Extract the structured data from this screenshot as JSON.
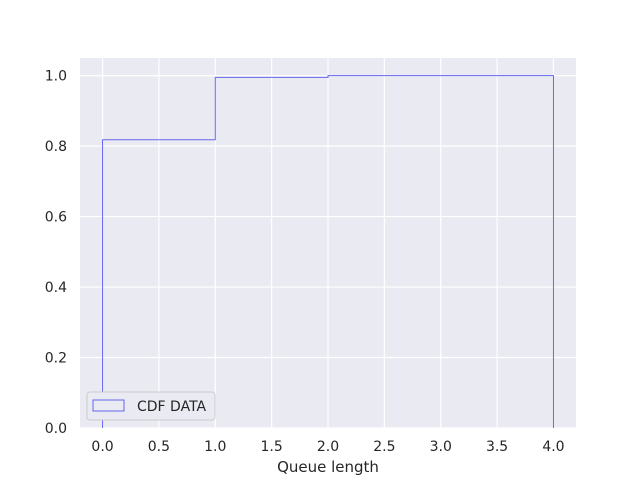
{
  "chart_data": {
    "type": "line",
    "title": "",
    "xlabel": "Queue length",
    "ylabel": "",
    "xlim": [
      -0.2,
      4.2
    ],
    "ylim": [
      0,
      1.05
    ],
    "x_ticks": [
      0.0,
      0.5,
      1.0,
      1.5,
      2.0,
      2.5,
      3.0,
      3.5,
      4.0
    ],
    "x_tick_labels": [
      "0.0",
      "0.5",
      "1.0",
      "1.5",
      "2.0",
      "2.5",
      "3.0",
      "3.5",
      "4.0"
    ],
    "y_ticks": [
      0.0,
      0.2,
      0.4,
      0.6,
      0.8,
      1.0
    ],
    "y_tick_labels": [
      "0.0",
      "0.2",
      "0.4",
      "0.6",
      "0.8",
      "1.0"
    ],
    "grid": true,
    "legend_position": "lower-left",
    "series": [
      {
        "name": "CDF DATA",
        "style": "step",
        "color": "#6666ee",
        "bins": [
          {
            "x0": 0,
            "x1": 1,
            "y": 0.818
          },
          {
            "x0": 1,
            "x1": 2,
            "y": 0.995
          },
          {
            "x0": 2,
            "x1": 4,
            "y": 1.0
          }
        ]
      }
    ]
  },
  "colors": {
    "plot_background": "#eaeaf2",
    "grid": "#ffffff",
    "series": "#6666ee"
  }
}
